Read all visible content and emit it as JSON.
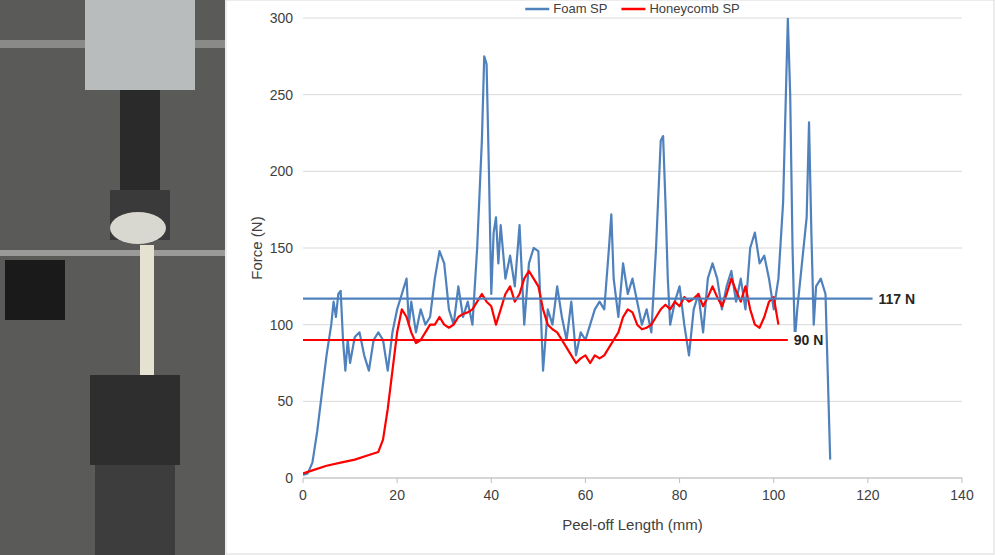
{
  "chart_data": {
    "type": "line",
    "xlabel": "Peel-off Length (mm)",
    "ylabel": "Force (N)",
    "xlim": [
      0,
      140
    ],
    "xticks": [
      0,
      20,
      40,
      60,
      80,
      100,
      120,
      140
    ],
    "ylim": [
      0,
      300
    ],
    "yticks": [
      0,
      50,
      100,
      150,
      200,
      250,
      300
    ],
    "grid": true,
    "legend": "top",
    "series": [
      {
        "name": "Foam SP",
        "color": "#4f81bd",
        "x": [
          0,
          1,
          2,
          3,
          4,
          5,
          6,
          6.5,
          7,
          7.5,
          8,
          8.5,
          9,
          9.5,
          10,
          11,
          12,
          13,
          14,
          15,
          16,
          17,
          18,
          19,
          20,
          21,
          22,
          22.5,
          23,
          24,
          25,
          26,
          27,
          28,
          29,
          30,
          31,
          32,
          33,
          34,
          35,
          36,
          37,
          38,
          38.5,
          39,
          39.5,
          40,
          40.5,
          41,
          41.5,
          42,
          43,
          44,
          45,
          46,
          47,
          48,
          49,
          50,
          50.5,
          51,
          52,
          53,
          54,
          55,
          56,
          57,
          58,
          59,
          60,
          61,
          62,
          63,
          64,
          65,
          65.5,
          66,
          67,
          68,
          69,
          70,
          71,
          72,
          73,
          74,
          75,
          76,
          76.5,
          77,
          77.5,
          78,
          79,
          80,
          81,
          82,
          83,
          84,
          85,
          86,
          87,
          88,
          89,
          90,
          91,
          92,
          93,
          94,
          95,
          96,
          97,
          98,
          99,
          100,
          101,
          102,
          103,
          103.5,
          104,
          104.5,
          105,
          106,
          107,
          107.5,
          108,
          108.5,
          109,
          110,
          111,
          112
        ],
        "values": [
          2,
          3,
          10,
          30,
          55,
          80,
          100,
          115,
          105,
          120,
          122,
          90,
          70,
          90,
          75,
          92,
          95,
          80,
          70,
          90,
          95,
          90,
          70,
          95,
          110,
          120,
          130,
          100,
          115,
          95,
          110,
          100,
          105,
          130,
          148,
          140,
          110,
          100,
          125,
          105,
          115,
          100,
          150,
          220,
          275,
          270,
          200,
          120,
          160,
          170,
          140,
          165,
          130,
          145,
          125,
          165,
          100,
          140,
          150,
          148,
          110,
          70,
          110,
          100,
          125,
          105,
          90,
          115,
          80,
          95,
          90,
          100,
          110,
          115,
          110,
          150,
          172,
          130,
          105,
          140,
          120,
          130,
          115,
          100,
          110,
          95,
          150,
          220,
          223,
          180,
          130,
          100,
          115,
          125,
          100,
          80,
          110,
          120,
          95,
          130,
          140,
          130,
          110,
          125,
          135,
          115,
          130,
          110,
          150,
          160,
          140,
          145,
          130,
          110,
          130,
          180,
          300,
          250,
          150,
          90,
          110,
          140,
          170,
          232,
          160,
          100,
          125,
          130,
          120,
          12
        ]
      },
      {
        "name": "Honeycomb SP",
        "color": "#ff0000",
        "x": [
          0,
          2,
          5,
          8,
          11,
          14,
          16,
          17,
          18,
          19,
          20,
          21,
          22,
          23,
          24,
          25,
          26,
          27,
          28,
          29,
          30,
          31,
          32,
          33,
          34,
          35,
          36,
          37,
          38,
          39,
          40,
          41,
          42,
          43,
          44,
          45,
          46,
          47,
          48,
          49,
          50,
          51,
          52,
          53,
          54,
          55,
          56,
          57,
          58,
          59,
          60,
          61,
          62,
          63,
          64,
          65,
          66,
          67,
          68,
          69,
          70,
          71,
          72,
          73,
          74,
          75,
          76,
          77,
          78,
          79,
          80,
          81,
          82,
          83,
          84,
          85,
          86,
          87,
          88,
          89,
          90,
          91,
          92,
          93,
          94,
          95,
          96,
          97,
          98,
          99,
          100,
          101
        ],
        "values": [
          3,
          5,
          8,
          10,
          12,
          15,
          17,
          25,
          45,
          70,
          95,
          110,
          105,
          95,
          88,
          90,
          95,
          100,
          100,
          105,
          100,
          98,
          100,
          105,
          107,
          108,
          110,
          115,
          120,
          115,
          112,
          100,
          110,
          120,
          125,
          115,
          120,
          130,
          135,
          130,
          125,
          110,
          100,
          97,
          95,
          90,
          85,
          80,
          75,
          78,
          80,
          75,
          80,
          78,
          80,
          85,
          90,
          95,
          105,
          110,
          108,
          100,
          97,
          98,
          100,
          105,
          110,
          113,
          110,
          115,
          112,
          118,
          115,
          117,
          120,
          112,
          118,
          125,
          118,
          112,
          120,
          130,
          122,
          115,
          125,
          110,
          100,
          98,
          105,
          115,
          118,
          100
        ]
      }
    ],
    "annotations": [
      {
        "text": "117 N",
        "y": 117,
        "x_end": 121,
        "color": "#4f81bd"
      },
      {
        "text": "90 N",
        "y": 90,
        "x_end": 103,
        "color": "#ff0000"
      }
    ]
  }
}
